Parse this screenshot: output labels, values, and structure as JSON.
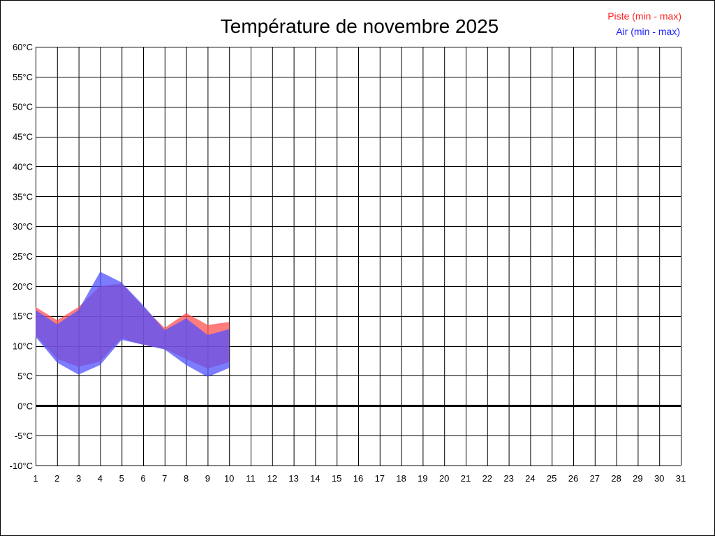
{
  "chart_data": {
    "type": "area",
    "title": "Température de novembre 2025",
    "xlabel": "",
    "ylabel": "",
    "xlim": [
      1,
      31
    ],
    "ylim": [
      -10,
      60
    ],
    "grid": true,
    "legend_position": "top-right",
    "x_ticks": [
      "1",
      "2",
      "3",
      "4",
      "5",
      "6",
      "7",
      "8",
      "9",
      "10",
      "11",
      "12",
      "13",
      "14",
      "15",
      "16",
      "17",
      "18",
      "19",
      "20",
      "21",
      "22",
      "23",
      "24",
      "25",
      "26",
      "27",
      "28",
      "29",
      "30",
      "31"
    ],
    "y_ticks": [
      "60°C",
      "55°C",
      "50°C",
      "45°C",
      "40°C",
      "35°C",
      "30°C",
      "25°C",
      "20°C",
      "15°C",
      "10°C",
      "5°C",
      "0°C",
      "-5°C",
      "-10°C"
    ],
    "y_tick_values": [
      60,
      55,
      50,
      45,
      40,
      35,
      30,
      25,
      20,
      15,
      10,
      5,
      0,
      -5,
      -10
    ],
    "series": [
      {
        "name": "Piste (min - max)",
        "color": "#ff5050",
        "x": [
          1,
          2,
          3,
          4,
          5,
          6,
          7,
          8,
          9,
          10
        ],
        "min": [
          11.8,
          7.8,
          6.5,
          7.4,
          11.3,
          10.2,
          9.5,
          7.8,
          6.2,
          7.3
        ],
        "max": [
          16.5,
          14.3,
          16.5,
          20.0,
          20.4,
          16.5,
          13.0,
          15.5,
          13.5,
          14.0
        ]
      },
      {
        "name": "Air (min - max)",
        "color": "#5050ff",
        "x": [
          1,
          2,
          3,
          4,
          5,
          6,
          7,
          8,
          9,
          10
        ],
        "min": [
          11.5,
          7.2,
          5.2,
          6.8,
          11.0,
          10.2,
          9.4,
          6.8,
          4.8,
          6.3
        ],
        "max": [
          16.0,
          13.6,
          16.0,
          22.4,
          20.6,
          16.8,
          12.6,
          14.6,
          11.8,
          12.8
        ]
      }
    ]
  }
}
